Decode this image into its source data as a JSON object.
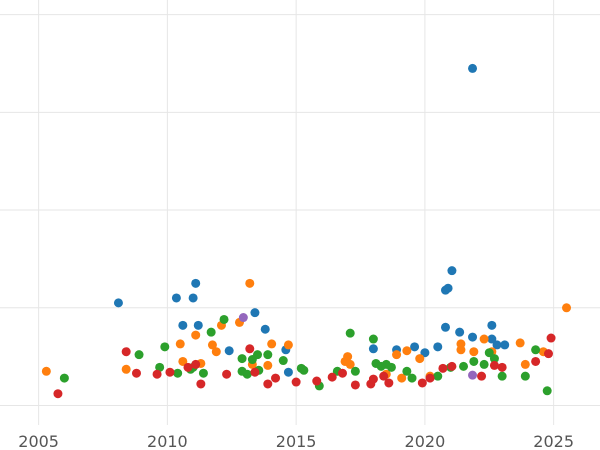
{
  "chart_data": {
    "type": "scatter",
    "title": "",
    "xlabel": "",
    "ylabel": "",
    "xlim": [
      2003.5,
      2026.8
    ],
    "ylim": [
      -0.2,
      4.15
    ],
    "xticks": [
      2005,
      2010,
      2015,
      2020,
      2025
    ],
    "xtick_labels": [
      "2005",
      "2010",
      "2015",
      "2020",
      "2025"
    ],
    "ygrid": [
      0,
      1,
      2,
      3,
      4
    ],
    "ytick_labels": [],
    "grid": true,
    "legend": "none",
    "series": [
      {
        "color": "#1f77b4",
        "points": [
          [
            2008.1,
            1.05
          ],
          [
            2010.35,
            1.1
          ],
          [
            2010.6,
            0.82
          ],
          [
            2011.0,
            1.1
          ],
          [
            2011.1,
            1.25
          ],
          [
            2011.2,
            0.82
          ],
          [
            2012.4,
            0.56
          ],
          [
            2013.4,
            0.95
          ],
          [
            2013.8,
            0.78
          ],
          [
            2014.6,
            0.57
          ],
          [
            2014.7,
            0.34
          ],
          [
            2018.0,
            0.58
          ],
          [
            2018.9,
            0.57
          ],
          [
            2019.6,
            0.6
          ],
          [
            2020.0,
            0.54
          ],
          [
            2020.5,
            0.6
          ],
          [
            2020.8,
            0.8
          ],
          [
            2020.8,
            1.18
          ],
          [
            2020.9,
            1.2
          ],
          [
            2021.05,
            1.38
          ],
          [
            2021.35,
            0.75
          ],
          [
            2021.85,
            3.45
          ],
          [
            2021.85,
            0.7
          ],
          [
            2022.6,
            0.82
          ],
          [
            2022.6,
            0.68
          ],
          [
            2022.8,
            0.62
          ],
          [
            2023.1,
            0.62
          ]
        ]
      },
      {
        "color": "#ff7f0e",
        "points": [
          [
            2005.3,
            0.35
          ],
          [
            2008.4,
            0.37
          ],
          [
            2010.5,
            0.63
          ],
          [
            2010.6,
            0.45
          ],
          [
            2011.1,
            0.72
          ],
          [
            2011.3,
            0.43
          ],
          [
            2011.75,
            0.62
          ],
          [
            2011.9,
            0.55
          ],
          [
            2012.1,
            0.82
          ],
          [
            2012.8,
            0.85
          ],
          [
            2013.2,
            1.25
          ],
          [
            2013.3,
            0.42
          ],
          [
            2013.9,
            0.41
          ],
          [
            2014.05,
            0.63
          ],
          [
            2014.7,
            0.62
          ],
          [
            2016.9,
            0.45
          ],
          [
            2017.0,
            0.5
          ],
          [
            2017.1,
            0.42
          ],
          [
            2018.5,
            0.32
          ],
          [
            2018.9,
            0.52
          ],
          [
            2019.1,
            0.28
          ],
          [
            2019.3,
            0.56
          ],
          [
            2019.8,
            0.48
          ],
          [
            2020.2,
            0.3
          ],
          [
            2021.4,
            0.63
          ],
          [
            2021.4,
            0.57
          ],
          [
            2021.9,
            0.55
          ],
          [
            2022.3,
            0.68
          ],
          [
            2022.6,
            0.55
          ],
          [
            2023.7,
            0.64
          ],
          [
            2023.9,
            0.42
          ],
          [
            2024.6,
            0.55
          ],
          [
            2025.5,
            1.0
          ]
        ]
      },
      {
        "color": "#2ca02c",
        "points": [
          [
            2006.0,
            0.28
          ],
          [
            2008.9,
            0.52
          ],
          [
            2009.7,
            0.39
          ],
          [
            2009.9,
            0.6
          ],
          [
            2010.4,
            0.33
          ],
          [
            2010.9,
            0.37
          ],
          [
            2011.0,
            0.39
          ],
          [
            2011.4,
            0.33
          ],
          [
            2011.7,
            0.75
          ],
          [
            2012.2,
            0.88
          ],
          [
            2012.9,
            0.35
          ],
          [
            2012.9,
            0.48
          ],
          [
            2013.1,
            0.32
          ],
          [
            2013.3,
            0.47
          ],
          [
            2013.5,
            0.52
          ],
          [
            2013.55,
            0.36
          ],
          [
            2013.9,
            0.52
          ],
          [
            2014.5,
            0.46
          ],
          [
            2015.2,
            0.38
          ],
          [
            2015.3,
            0.36
          ],
          [
            2015.9,
            0.2
          ],
          [
            2016.6,
            0.35
          ],
          [
            2017.1,
            0.74
          ],
          [
            2017.3,
            0.35
          ],
          [
            2018.0,
            0.68
          ],
          [
            2018.1,
            0.43
          ],
          [
            2018.3,
            0.4
          ],
          [
            2018.5,
            0.42
          ],
          [
            2018.7,
            0.39
          ],
          [
            2019.3,
            0.35
          ],
          [
            2019.5,
            0.28
          ],
          [
            2020.5,
            0.3
          ],
          [
            2021.0,
            0.39
          ],
          [
            2021.5,
            0.4
          ],
          [
            2021.9,
            0.45
          ],
          [
            2022.3,
            0.42
          ],
          [
            2022.5,
            0.54
          ],
          [
            2022.7,
            0.48
          ],
          [
            2023.0,
            0.3
          ],
          [
            2023.9,
            0.3
          ],
          [
            2024.3,
            0.57
          ],
          [
            2024.75,
            0.15
          ]
        ]
      },
      {
        "color": "#d62728",
        "points": [
          [
            2005.75,
            0.12
          ],
          [
            2008.4,
            0.55
          ],
          [
            2008.8,
            0.33
          ],
          [
            2009.6,
            0.32
          ],
          [
            2010.1,
            0.34
          ],
          [
            2010.8,
            0.39
          ],
          [
            2011.1,
            0.42
          ],
          [
            2011.3,
            0.22
          ],
          [
            2012.3,
            0.32
          ],
          [
            2013.2,
            0.58
          ],
          [
            2013.4,
            0.34
          ],
          [
            2013.9,
            0.22
          ],
          [
            2014.2,
            0.28
          ],
          [
            2015.0,
            0.24
          ],
          [
            2015.8,
            0.25
          ],
          [
            2016.4,
            0.29
          ],
          [
            2016.8,
            0.33
          ],
          [
            2017.3,
            0.21
          ],
          [
            2017.9,
            0.22
          ],
          [
            2018.0,
            0.27
          ],
          [
            2018.4,
            0.3
          ],
          [
            2018.6,
            0.23
          ],
          [
            2019.9,
            0.23
          ],
          [
            2020.2,
            0.28
          ],
          [
            2020.7,
            0.38
          ],
          [
            2021.05,
            0.4
          ],
          [
            2022.2,
            0.3
          ],
          [
            2022.7,
            0.41
          ],
          [
            2023.0,
            0.39
          ],
          [
            2024.3,
            0.45
          ],
          [
            2024.8,
            0.53
          ],
          [
            2024.9,
            0.69
          ]
        ]
      },
      {
        "color": "#9467bd",
        "points": [
          [
            2012.95,
            0.9
          ],
          [
            2021.85,
            0.31
          ]
        ]
      }
    ]
  }
}
